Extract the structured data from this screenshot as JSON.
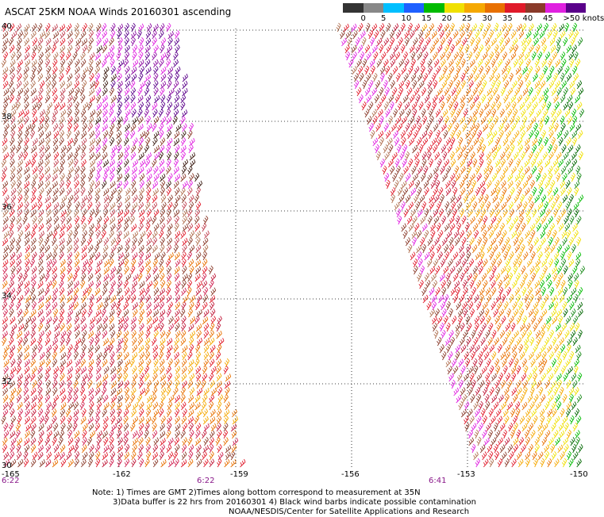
{
  "title": "ASCAT 25KM NOAA Winds 20160301 ascending",
  "legend": {
    "colors": [
      "#333333",
      "#888888",
      "#00bfff",
      "#1f60ff",
      "#00bb00",
      "#f0e000",
      "#f5a800",
      "#e87000",
      "#e01a2a",
      "#8a3a2a",
      "#e020e0",
      "#5a008a"
    ],
    "labels": [
      "0",
      "5",
      "10",
      "15",
      "20",
      "25",
      "30",
      "35",
      "40",
      "45",
      ">50 knots"
    ]
  },
  "axes": {
    "lon_ticks": [
      "-165",
      "-162",
      "-159",
      "-156",
      "-153",
      "-150"
    ],
    "lat_ticks": [
      "40",
      "38",
      "36",
      "34",
      "32",
      "30"
    ],
    "lat_edge": "30"
  },
  "times": [
    "6:22",
    "6:22",
    "6:41"
  ],
  "notes": {
    "line1": "Note: 1) Times are GMT 2)Times along bottom correspond to measurement at 35N",
    "line2": "3)Data buffer is 22 hrs from 20160301 4) Black wind barbs indicate possible contamination",
    "line3": "NOAA/NESDIS/Center for Satellite Applications and Research"
  }
}
